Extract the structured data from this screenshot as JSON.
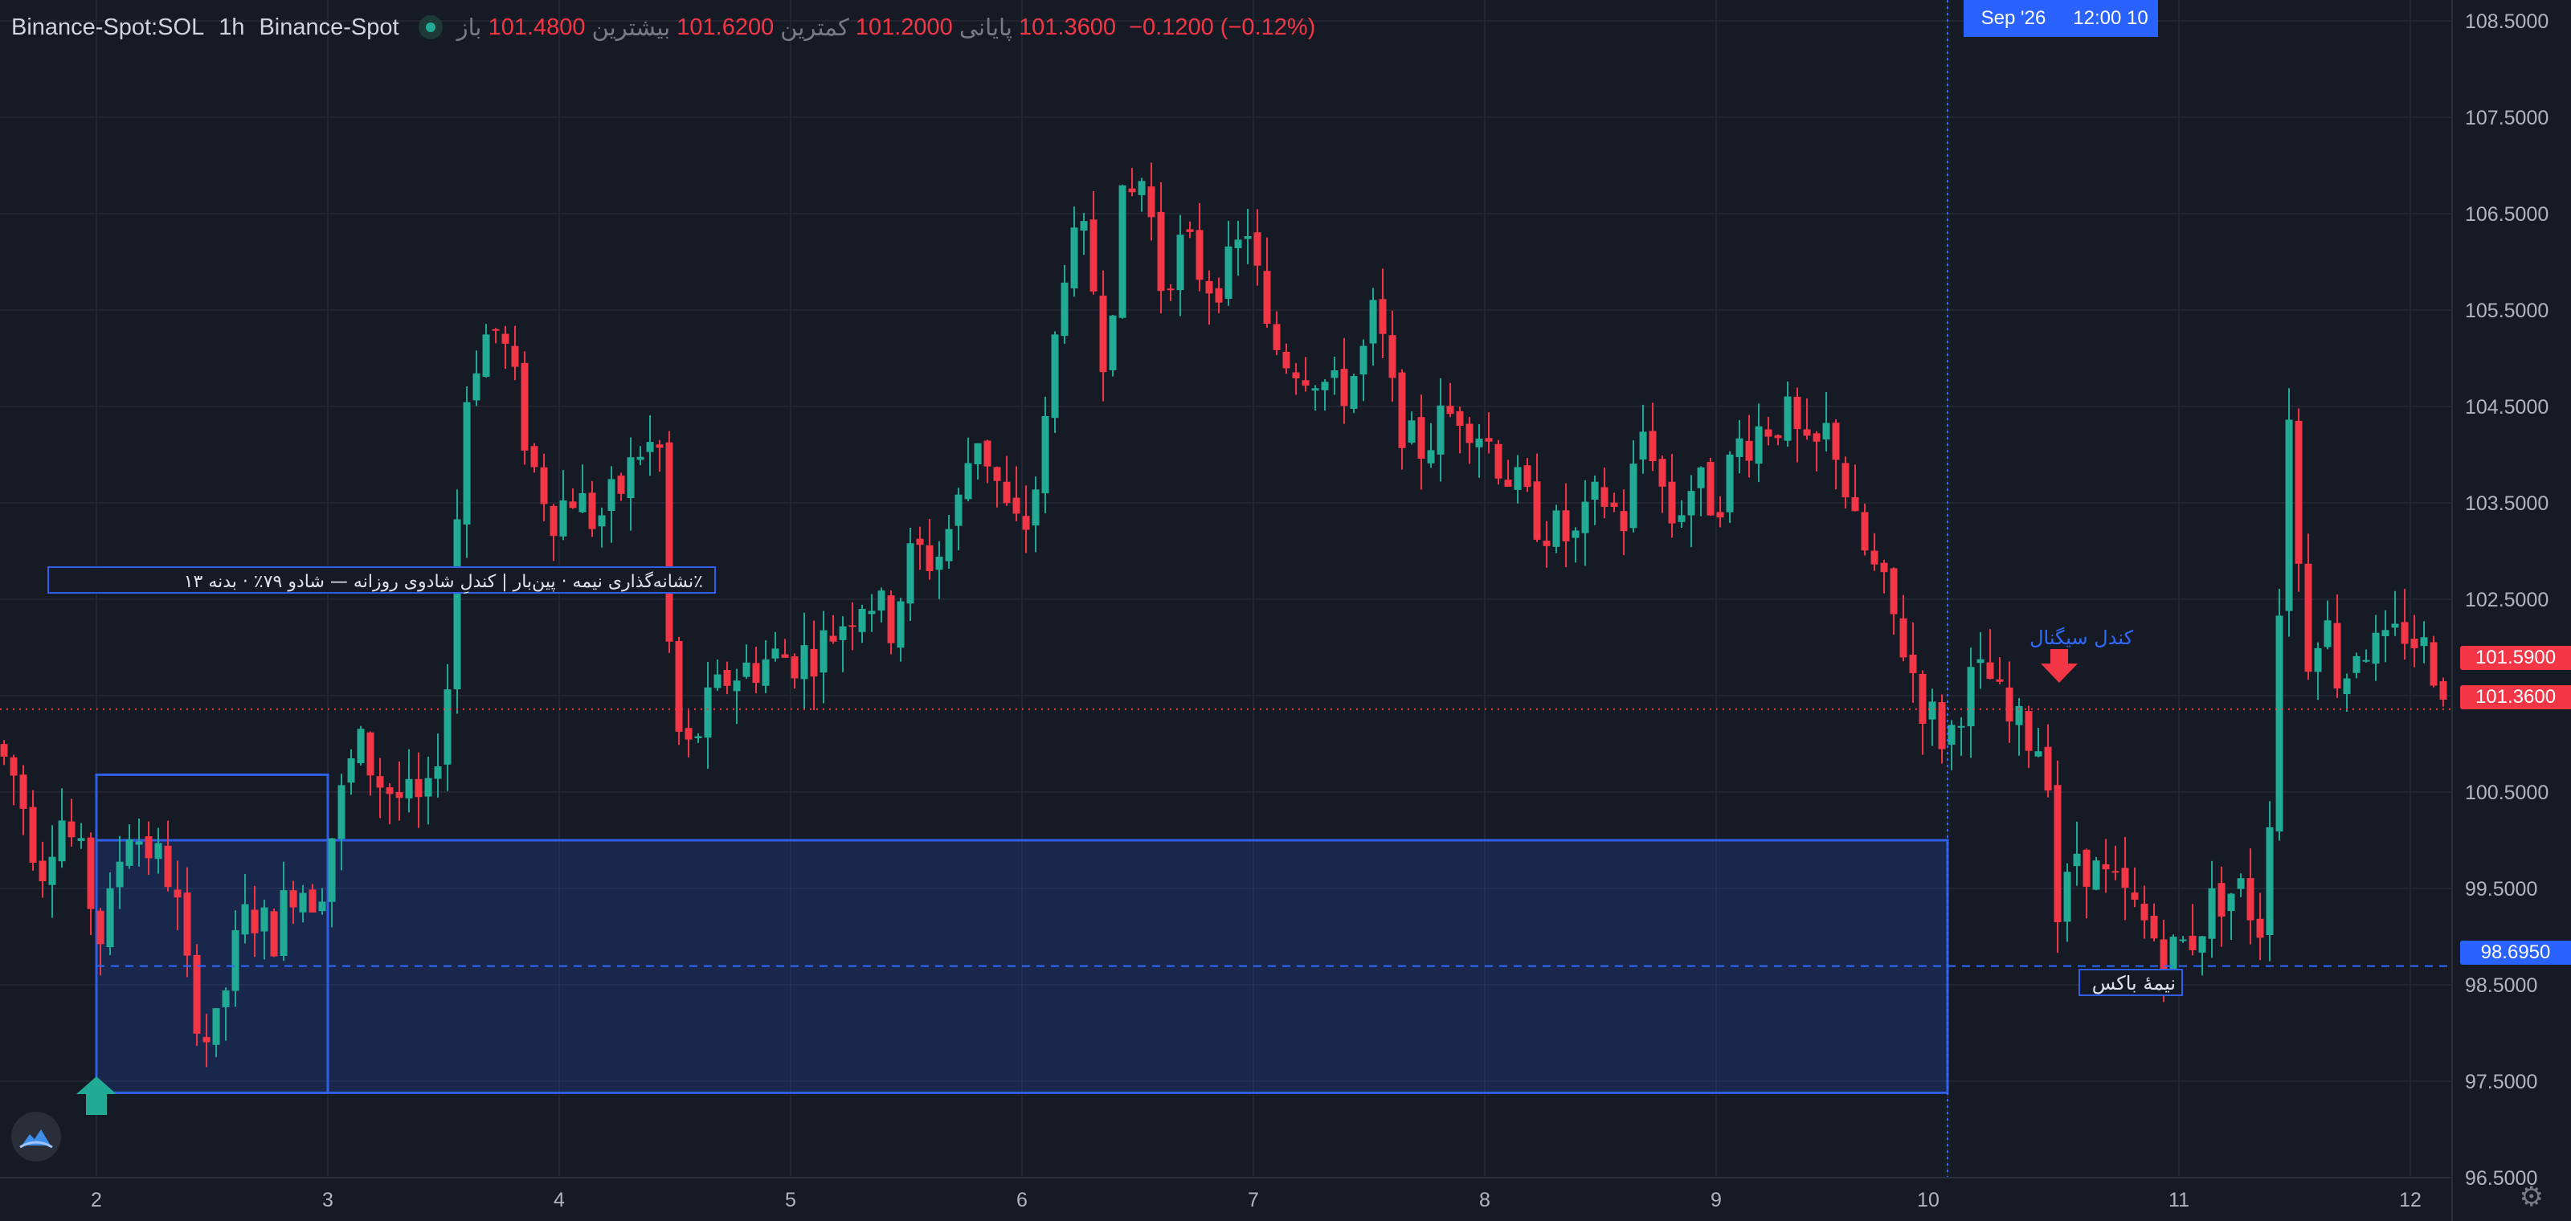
{
  "legend": {
    "symbol": "Binance-Spot:SOL",
    "interval": "1h",
    "exchange": "Binance-Spot",
    "open_label": "باز",
    "open": "101.4800",
    "high_label": "بیشترین",
    "high": "101.6200",
    "low_label": "کمترین",
    "low": "101.2000",
    "close_label": "پایانی",
    "close": "101.3600",
    "change": "−0.1200 (−0.12%)"
  },
  "colors": {
    "background": "#161a25",
    "up": "#22ab94",
    "down": "#f23645",
    "accent": "#2962ff",
    "grid": "#232632",
    "axis_text": "#b2b5be"
  },
  "price_axis": {
    "labels": [
      "108.5000",
      "107.5000",
      "106.5000",
      "105.5000",
      "104.5000",
      "103.5000",
      "102.5000",
      "101.5000",
      "100.5000",
      "99.5000",
      "98.5000",
      "97.5000",
      "96.5000"
    ],
    "tags": {
      "high_tag": "101.5900",
      "last_tag": "101.3600",
      "midline_tag": "98.6950"
    }
  },
  "time_axis": {
    "labels": [
      "2",
      "3",
      "4",
      "5",
      "6",
      "7",
      "8",
      "9",
      "10",
      "11",
      "12"
    ],
    "crosshair_date": "Sep '26",
    "crosshair_time": "12:00 10"
  },
  "annotations": {
    "note_label": "٪نشانه‌گذاری نیمه · پین‌بار | کندلِ شادوی روزانه — شادو ۷۹٪ · بدنه ۱۳",
    "signal_label": "کندل سیگنال",
    "mid_label": "نیمهٔ باکس"
  },
  "chart_data": {
    "type": "candlestick",
    "symbol": "Binance-Spot:SOL",
    "interval": "1h",
    "ylim": [
      96.5,
      108.5
    ],
    "y_ticks": [
      108.5,
      107.5,
      106.5,
      105.5,
      104.5,
      103.5,
      102.5,
      101.5,
      100.5,
      99.5,
      98.5,
      97.5,
      96.5
    ],
    "x_day_ticks": [
      2,
      3,
      4,
      5,
      6,
      7,
      8,
      9,
      10,
      11,
      12
    ],
    "last_price": 101.36,
    "session_high_tag": 101.59,
    "box": {
      "from_day": 2.0,
      "to_day": 10.0,
      "top": 100.0,
      "bottom": 97.38,
      "mid": 98.695
    },
    "inner_box": {
      "from_day": 2.0,
      "to_day": 3.0,
      "top": 100.68
    },
    "signal_day": 10.0,
    "crosshair_day": 10.0,
    "path": [
      [
        1.58,
        101.0
      ],
      [
        1.68,
        100.6
      ],
      [
        1.78,
        99.7
      ],
      [
        1.86,
        100.3
      ],
      [
        1.95,
        99.8
      ],
      [
        2.05,
        98.9
      ],
      [
        2.15,
        100.2
      ],
      [
        2.25,
        99.9
      ],
      [
        2.35,
        99.6
      ],
      [
        2.42,
        98.5
      ],
      [
        2.52,
        97.8
      ],
      [
        2.6,
        98.7
      ],
      [
        2.68,
        99.3
      ],
      [
        2.78,
        99.0
      ],
      [
        2.88,
        99.6
      ],
      [
        2.98,
        99.4
      ],
      [
        3.05,
        100.2
      ],
      [
        3.15,
        101.0
      ],
      [
        3.25,
        100.6
      ],
      [
        3.35,
        100.4
      ],
      [
        3.45,
        100.3
      ],
      [
        3.55,
        101.8
      ],
      [
        3.6,
        104.4
      ],
      [
        3.68,
        105.2
      ],
      [
        3.76,
        105.3
      ],
      [
        3.82,
        104.8
      ],
      [
        3.9,
        103.9
      ],
      [
        4.0,
        103.4
      ],
      [
        4.08,
        103.6
      ],
      [
        4.18,
        103.3
      ],
      [
        4.28,
        103.6
      ],
      [
        4.38,
        104.1
      ],
      [
        4.48,
        104.0
      ],
      [
        4.5,
        101.6
      ],
      [
        4.56,
        100.8
      ],
      [
        4.65,
        101.3
      ],
      [
        4.75,
        101.7
      ],
      [
        4.85,
        101.8
      ],
      [
        4.95,
        101.9
      ],
      [
        5.05,
        101.9
      ],
      [
        5.15,
        102.0
      ],
      [
        5.25,
        102.3
      ],
      [
        5.35,
        102.6
      ],
      [
        5.45,
        102.2
      ],
      [
        5.55,
        103.0
      ],
      [
        5.65,
        102.9
      ],
      [
        5.75,
        103.5
      ],
      [
        5.82,
        104.3
      ],
      [
        5.9,
        103.8
      ],
      [
        5.98,
        103.2
      ],
      [
        6.05,
        103.3
      ],
      [
        6.12,
        104.2
      ],
      [
        6.2,
        106.0
      ],
      [
        6.3,
        106.2
      ],
      [
        6.38,
        105.0
      ],
      [
        6.45,
        106.5
      ],
      [
        6.55,
        106.9
      ],
      [
        6.62,
        105.8
      ],
      [
        6.72,
        106.2
      ],
      [
        6.82,
        105.8
      ],
      [
        6.92,
        105.9
      ],
      [
        7.0,
        106.4
      ],
      [
        7.08,
        105.2
      ],
      [
        7.18,
        105.0
      ],
      [
        7.28,
        104.9
      ],
      [
        7.38,
        104.6
      ],
      [
        7.48,
        104.9
      ],
      [
        7.55,
        105.5
      ],
      [
        7.62,
        104.6
      ],
      [
        7.72,
        104.0
      ],
      [
        7.82,
        104.3
      ],
      [
        7.92,
        104.5
      ],
      [
        8.02,
        104.2
      ],
      [
        8.12,
        103.8
      ],
      [
        8.22,
        103.4
      ],
      [
        8.32,
        103.2
      ],
      [
        8.42,
        103.1
      ],
      [
        8.52,
        103.6
      ],
      [
        8.62,
        103.3
      ],
      [
        8.72,
        104.4
      ],
      [
        8.82,
        103.3
      ],
      [
        8.92,
        103.7
      ],
      [
        9.02,
        103.5
      ],
      [
        9.12,
        104.1
      ],
      [
        9.22,
        104.3
      ],
      [
        9.32,
        104.4
      ],
      [
        9.42,
        103.9
      ],
      [
        9.52,
        104.3
      ],
      [
        9.62,
        103.2
      ],
      [
        9.72,
        102.7
      ],
      [
        9.82,
        102.1
      ],
      [
        9.92,
        101.4
      ],
      [
        10.02,
        101.0
      ],
      [
        10.1,
        101.6
      ],
      [
        10.2,
        101.7
      ],
      [
        10.28,
        101.2
      ],
      [
        10.36,
        101.1
      ],
      [
        10.45,
        100.95
      ],
      [
        10.5,
        99.1
      ],
      [
        10.58,
        99.9
      ],
      [
        10.68,
        99.6
      ],
      [
        10.78,
        99.4
      ],
      [
        10.88,
        99.1
      ],
      [
        10.98,
        98.8
      ],
      [
        11.08,
        99.0
      ],
      [
        11.18,
        99.4
      ],
      [
        11.28,
        99.5
      ],
      [
        11.38,
        99.1
      ],
      [
        11.42,
        100.6
      ],
      [
        11.5,
        104.7
      ],
      [
        11.56,
        101.8
      ],
      [
        11.64,
        102.4
      ],
      [
        11.72,
        101.6
      ],
      [
        11.8,
        102.1
      ],
      [
        11.9,
        101.9
      ],
      [
        12.0,
        102.2
      ],
      [
        12.1,
        101.9
      ],
      [
        12.18,
        101.6
      ]
    ]
  }
}
